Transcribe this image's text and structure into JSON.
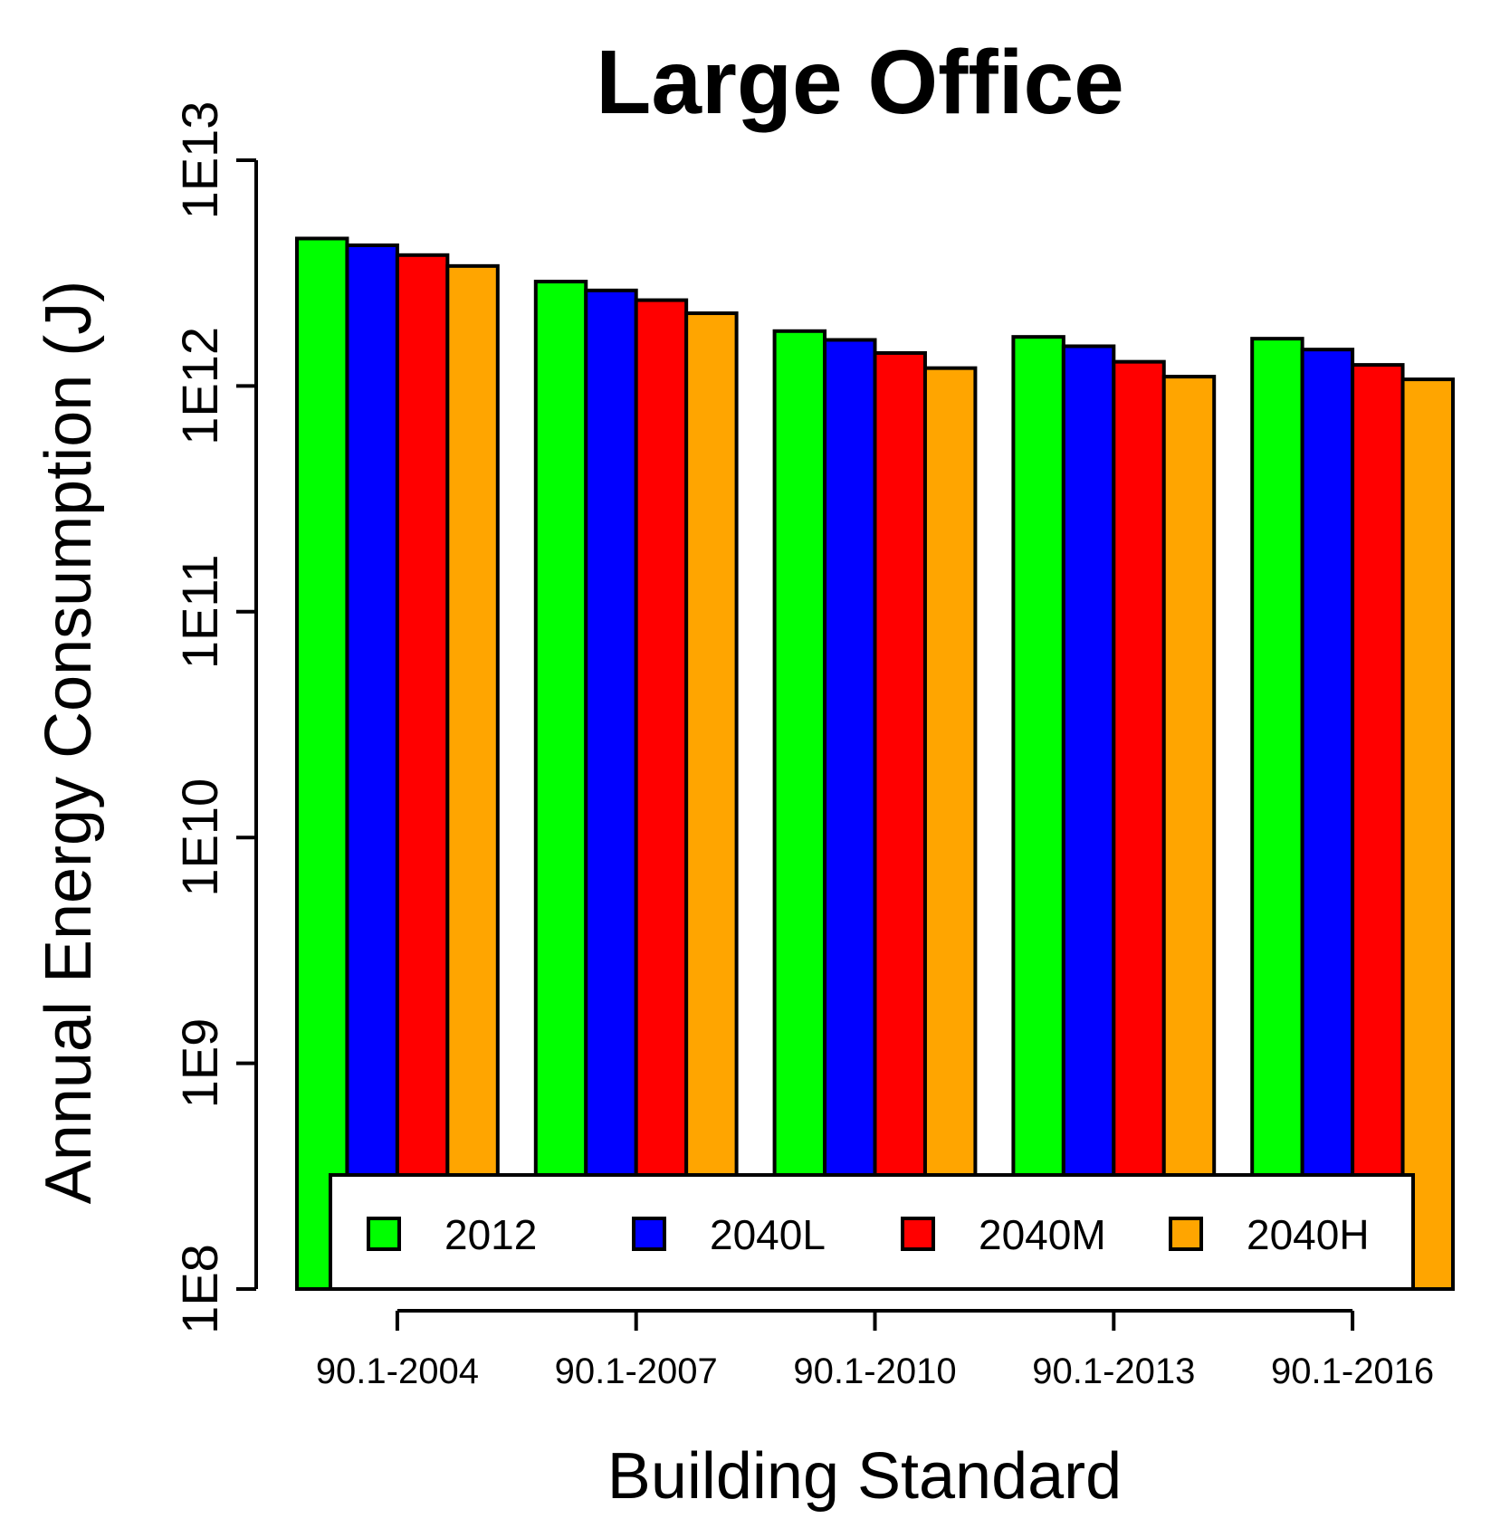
{
  "chart_data": {
    "type": "bar",
    "title": "Large Office",
    "xlabel": "Building Standard",
    "ylabel": "Annual Energy Consumption (J)",
    "yscale": "log",
    "ylim": [
      100000000.0,
      10000000000000.0
    ],
    "yticks": [
      {
        "value": 100000000.0,
        "label": "1E8"
      },
      {
        "value": 1000000000.0,
        "label": "1E9"
      },
      {
        "value": 10000000000.0,
        "label": "1E10"
      },
      {
        "value": 100000000000.0,
        "label": "1E11"
      },
      {
        "value": 1000000000000.0,
        "label": "1E12"
      },
      {
        "value": 10000000000000.0,
        "label": "1E13"
      }
    ],
    "categories": [
      "90.1-2004",
      "90.1-2007",
      "90.1-2010",
      "90.1-2013",
      "90.1-2016"
    ],
    "series": [
      {
        "name": "2012",
        "color": "#00ff00",
        "values": [
          4500000000000.0,
          2900000000000.0,
          1750000000000.0,
          1650000000000.0,
          1620000000000.0
        ]
      },
      {
        "name": "2040L",
        "color": "#0000ff",
        "values": [
          4200000000000.0,
          2650000000000.0,
          1600000000000.0,
          1500000000000.0,
          1450000000000.0
        ]
      },
      {
        "name": "2040M",
        "color": "#ff0000",
        "values": [
          3800000000000.0,
          2400000000000.0,
          1400000000000.0,
          1280000000000.0,
          1240000000000.0
        ]
      },
      {
        "name": "2040H",
        "color": "#ffa500",
        "values": [
          3400000000000.0,
          2100000000000.0,
          1200000000000.0,
          1100000000000.0,
          1070000000000.0
        ]
      }
    ],
    "legend_position": "bottom",
    "grid": false
  }
}
